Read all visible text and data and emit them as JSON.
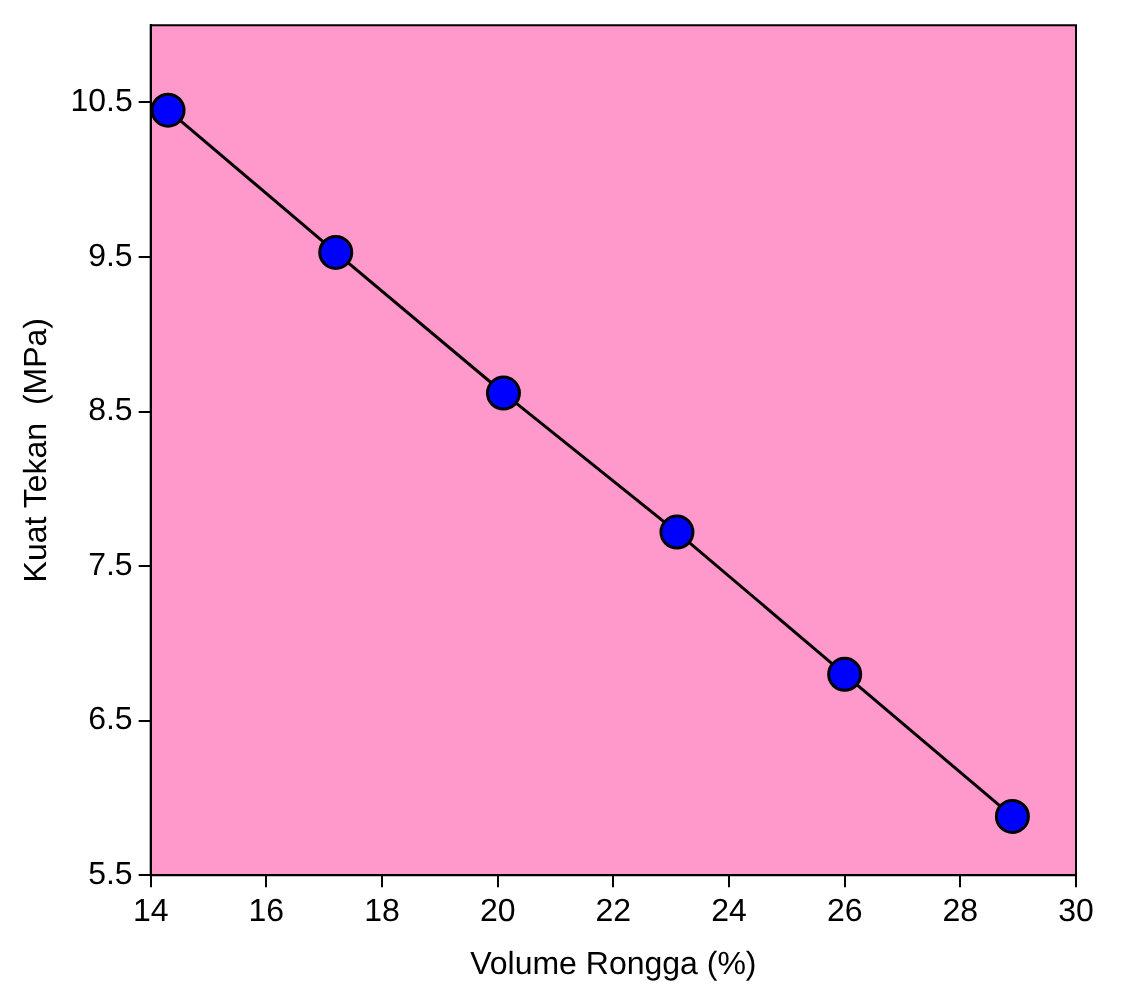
{
  "chart_data": {
    "type": "line",
    "xlabel": "Volume Rongga (%)",
    "ylabel": "Kuat Tekan  (MPa)",
    "x": [
      14.3,
      17.2,
      20.1,
      23.1,
      26.0,
      28.9
    ],
    "series": [
      {
        "color": "#0000ff",
        "values": [
          10.45,
          9.53,
          8.62,
          7.72,
          6.8,
          5.88
        ]
      }
    ],
    "xlim": [
      14,
      30
    ],
    "xticks": [
      14,
      16,
      18,
      20,
      22,
      24,
      26,
      28,
      30
    ],
    "ylim": [
      5.5,
      11
    ],
    "yticks": [
      {
        "value": 5.5,
        "label": "5.5"
      },
      {
        "value": 6.5,
        "label": "6.5"
      },
      {
        "value": 7.5,
        "label": "7.5"
      },
      {
        "value": 8.5,
        "label": "8.5"
      },
      {
        "value": 9.5,
        "label": "9.5"
      },
      {
        "value": 10.5,
        "label": "10.5"
      }
    ],
    "marker": "circle",
    "grid": false,
    "legend": false
  }
}
